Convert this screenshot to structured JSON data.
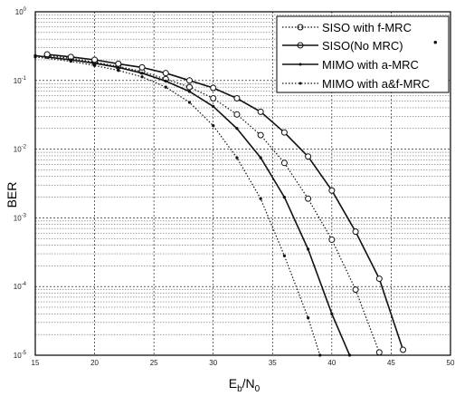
{
  "chart_data": {
    "type": "line",
    "title": "",
    "xlabel": "E",
    "xlabel_sub_b": "b",
    "xlabel_mid": "/N",
    "xlabel_sub_0": "0",
    "ylabel": "BER",
    "xlim": [
      15,
      50
    ],
    "ylim": [
      1e-05,
      1
    ],
    "yscale": "log",
    "grid": true,
    "legend_position": "top-right",
    "x_ticks": [
      "15",
      "20",
      "25",
      "30",
      "35",
      "40",
      "45",
      "50"
    ],
    "y_tick_labels": [
      {
        "base": "10",
        "exp": "0"
      },
      {
        "base": "10",
        "exp": "-1"
      },
      {
        "base": "10",
        "exp": "-2"
      },
      {
        "base": "10",
        "exp": "-3"
      },
      {
        "base": "10",
        "exp": "-4"
      },
      {
        "base": "10",
        "exp": "-5"
      }
    ],
    "series": [
      {
        "name": "SISO with f-MRC",
        "style": "dotted",
        "marker": "circle",
        "color": "#111111",
        "x": [
          16,
          18,
          20,
          22,
          24,
          26,
          28,
          30,
          32,
          34,
          36,
          38,
          40,
          42,
          44
        ],
        "y": [
          0.23,
          0.21,
          0.185,
          0.16,
          0.135,
          0.105,
          0.08,
          0.055,
          0.032,
          0.016,
          0.0063,
          0.0019,
          0.00048,
          9e-05,
          1.1e-05
        ]
      },
      {
        "name": "SISO(No MRC)",
        "style": "solid",
        "marker": "circle",
        "color": "#111111",
        "x": [
          16,
          18,
          20,
          22,
          24,
          26,
          28,
          30,
          32,
          34,
          36,
          38,
          40,
          42,
          44,
          46
        ],
        "y": [
          0.24,
          0.22,
          0.2,
          0.175,
          0.155,
          0.128,
          0.1,
          0.078,
          0.055,
          0.035,
          0.0175,
          0.0078,
          0.0025,
          0.00063,
          0.00013,
          1.2e-05
        ]
      },
      {
        "name": "MIMO with a-MRC",
        "style": "solid",
        "marker": "dot",
        "color": "#111111",
        "x": [
          15,
          18,
          20,
          22,
          24,
          26,
          28,
          30,
          32,
          34,
          36,
          38,
          40,
          41.5
        ],
        "y": [
          0.23,
          0.2,
          0.178,
          0.155,
          0.128,
          0.098,
          0.069,
          0.042,
          0.02,
          0.0075,
          0.002,
          0.00035,
          4e-05,
          1e-05
        ]
      },
      {
        "name": "MIMO with a&f-MRC",
        "style": "dotted",
        "marker": "dot",
        "color": "#111111",
        "x": [
          15,
          18,
          20,
          22,
          24,
          26,
          28,
          30,
          32,
          34,
          36,
          38,
          39
        ],
        "y": [
          0.22,
          0.19,
          0.165,
          0.14,
          0.113,
          0.08,
          0.048,
          0.022,
          0.0075,
          0.0019,
          0.00028,
          3.5e-05,
          1e-05
        ]
      }
    ],
    "legend_extra_mark": "•"
  }
}
